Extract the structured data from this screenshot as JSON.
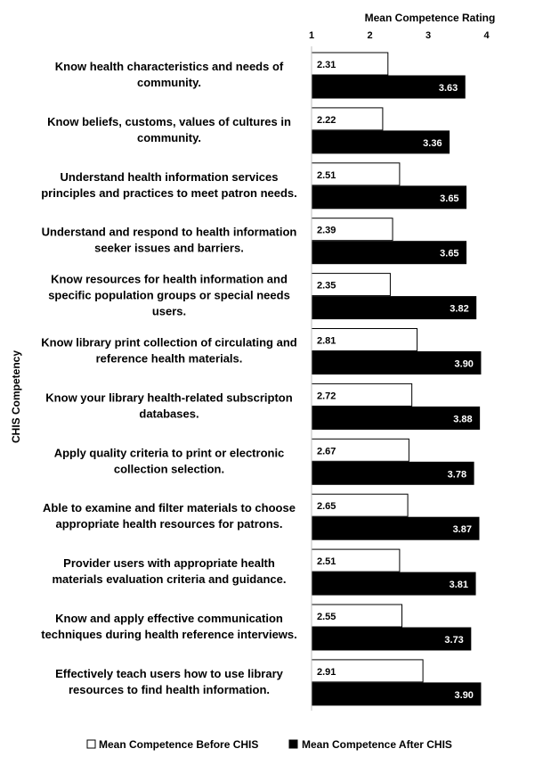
{
  "chart_data": {
    "type": "bar",
    "orientation": "horizontal",
    "xlabel": "Mean Competence Rating",
    "ylabel": "CHIS Competency",
    "xlim": [
      1,
      5
    ],
    "xticks": [
      1,
      2,
      3,
      4,
      5
    ],
    "grid": false,
    "legend_position": "bottom",
    "categories": [
      [
        "Know health characteristics and needs of",
        "community."
      ],
      [
        "Know beliefs, customs, values of cultures in",
        "community."
      ],
      [
        "Understand health information services",
        "principles and practices to meet patron needs."
      ],
      [
        "Understand and respond to health information",
        "seeker issues and barriers."
      ],
      [
        "Know resources for health information and",
        "specific population groups or special needs",
        "users."
      ],
      [
        "Know library print collection of circulating and",
        "reference health materials."
      ],
      [
        "Know your library health-related subscripton",
        "databases."
      ],
      [
        "Apply quality criteria to print or electronic",
        "collection selection."
      ],
      [
        "Able to examine and filter materials to choose",
        "appropriate health resources for patrons."
      ],
      [
        "Provider users with appropriate health",
        "materials evaluation criteria and guidance."
      ],
      [
        "Know and apply effective communication",
        "techniques during health reference interviews."
      ],
      [
        "Effectively teach users how to use library",
        "resources to find health information."
      ]
    ],
    "series": [
      {
        "name": "Mean Competence Before CHIS",
        "color": "#ffffff",
        "values": [
          2.31,
          2.22,
          2.51,
          2.39,
          2.35,
          2.81,
          2.72,
          2.67,
          2.65,
          2.51,
          2.55,
          2.91
        ],
        "labels": [
          "2.31",
          "2.22",
          "2.51",
          "2.39",
          "2.35",
          "2.81",
          "2.72",
          "2.67",
          "2.65",
          "2.51",
          "2.55",
          "2.91"
        ]
      },
      {
        "name": "Mean Competence After CHIS",
        "color": "#000000",
        "values": [
          3.63,
          3.36,
          3.65,
          3.65,
          3.82,
          3.9,
          3.88,
          3.78,
          3.87,
          3.81,
          3.73,
          3.9
        ],
        "labels": [
          "3.63",
          "3.36",
          "3.65",
          "3.65",
          "3.82",
          "3.90",
          "3.88",
          "3.78",
          "3.87",
          "3.81",
          "3.73",
          "3.90"
        ]
      }
    ]
  }
}
